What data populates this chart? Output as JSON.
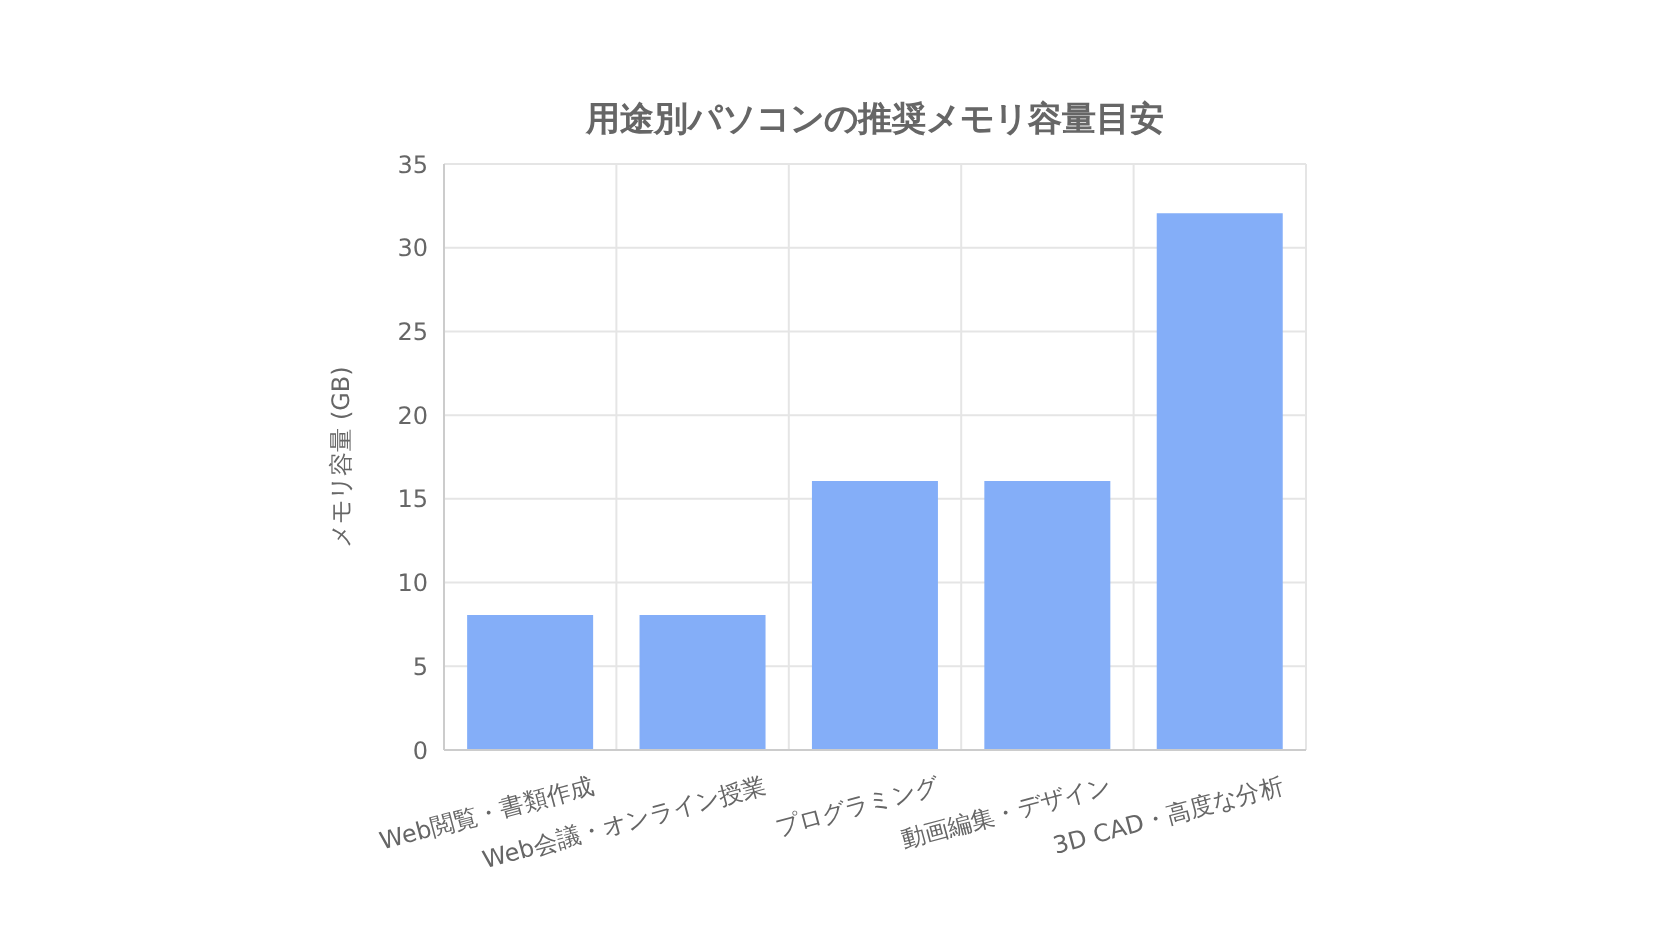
{
  "chart_data": {
    "type": "bar",
    "title": "用途別パソコンの推奨メモリ容量目安",
    "ylabel": "メモリ容量 (GB)",
    "categories": [
      "Web閲覧・書類作成",
      "Web会議・オンライン授業",
      "プログラミング",
      "動画編集・デザイン",
      "3D CAD・高度な分析"
    ],
    "values": [
      8,
      8,
      16,
      16,
      32
    ],
    "color": "#84aef8",
    "ylim": [
      0,
      35
    ],
    "yticks": [
      0,
      5,
      10,
      15,
      20,
      25,
      30,
      35
    ],
    "grid": true
  }
}
